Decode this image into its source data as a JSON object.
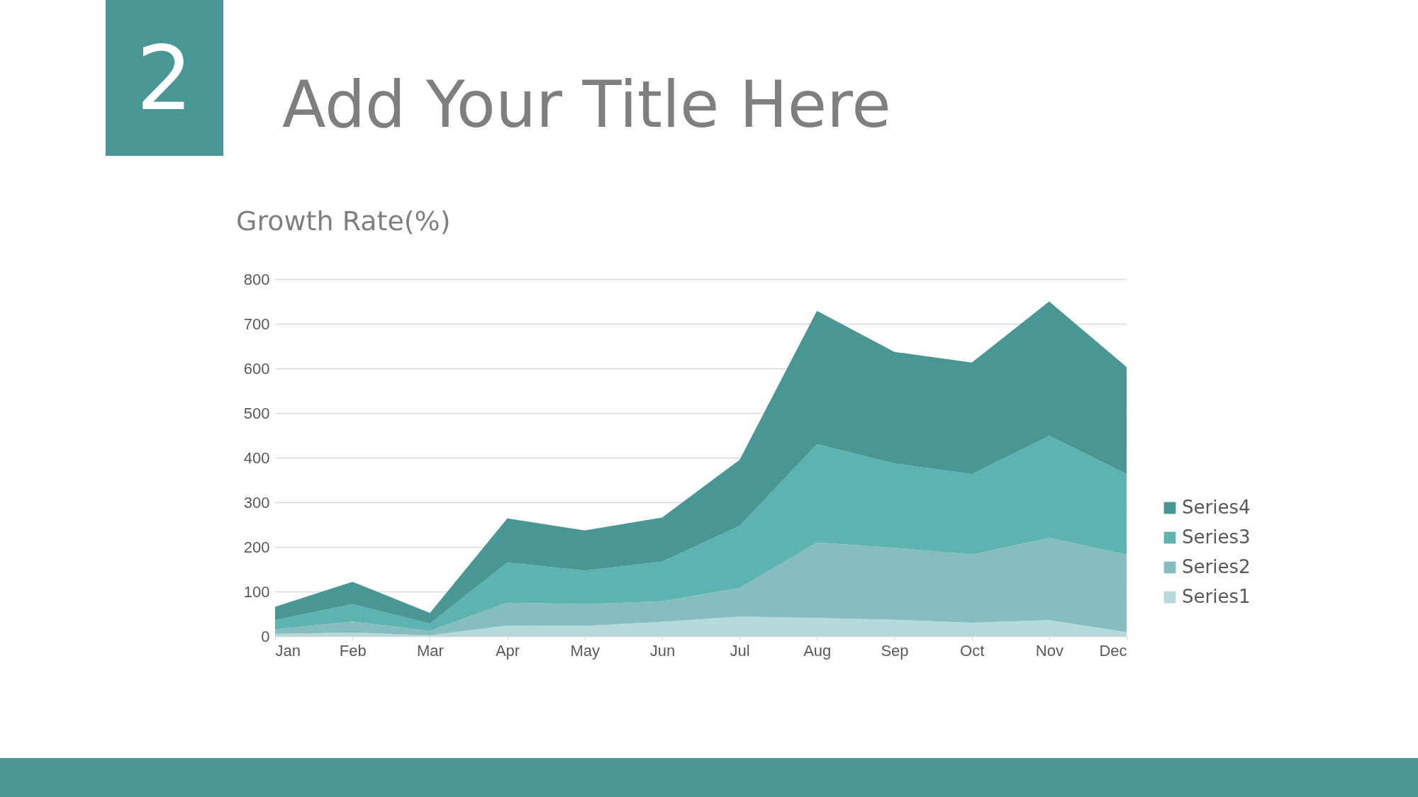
{
  "chart_data": {
    "type": "area",
    "title": "Add Your Title Here",
    "subtitle": "Growth Rate(%)",
    "annotations": [
      "2"
    ],
    "categories": [
      "Jan",
      "Feb",
      "Mar",
      "Apr",
      "May",
      "Jun",
      "Jul",
      "Aug",
      "Sep",
      "Oct",
      "Nov",
      "Dec"
    ],
    "stacked": true,
    "ylim": [
      0,
      800
    ],
    "yticks": [
      0,
      100,
      200,
      300,
      400,
      500,
      600,
      700,
      800
    ],
    "grid": "y",
    "legend": "right",
    "series": [
      {
        "name": "Series1",
        "color": "#b6d9db",
        "values": [
          5,
          8,
          2,
          24,
          23,
          32,
          44,
          41,
          37,
          30,
          36,
          9
        ]
      },
      {
        "name": "Series2",
        "color": "#85bdc1",
        "values": [
          10,
          25,
          10,
          51,
          49,
          46,
          64,
          169,
          161,
          153,
          184,
          174
        ]
      },
      {
        "name": "Series3",
        "color": "#5db3b0",
        "values": [
          21,
          39,
          16,
          90,
          75,
          89,
          139,
          220,
          189,
          180,
          229,
          180
        ]
      },
      {
        "name": "Series4",
        "color": "#489795",
        "values": [
          30,
          50,
          24,
          99,
          90,
          99,
          148,
          299,
          250,
          250,
          301,
          240
        ]
      }
    ]
  }
}
